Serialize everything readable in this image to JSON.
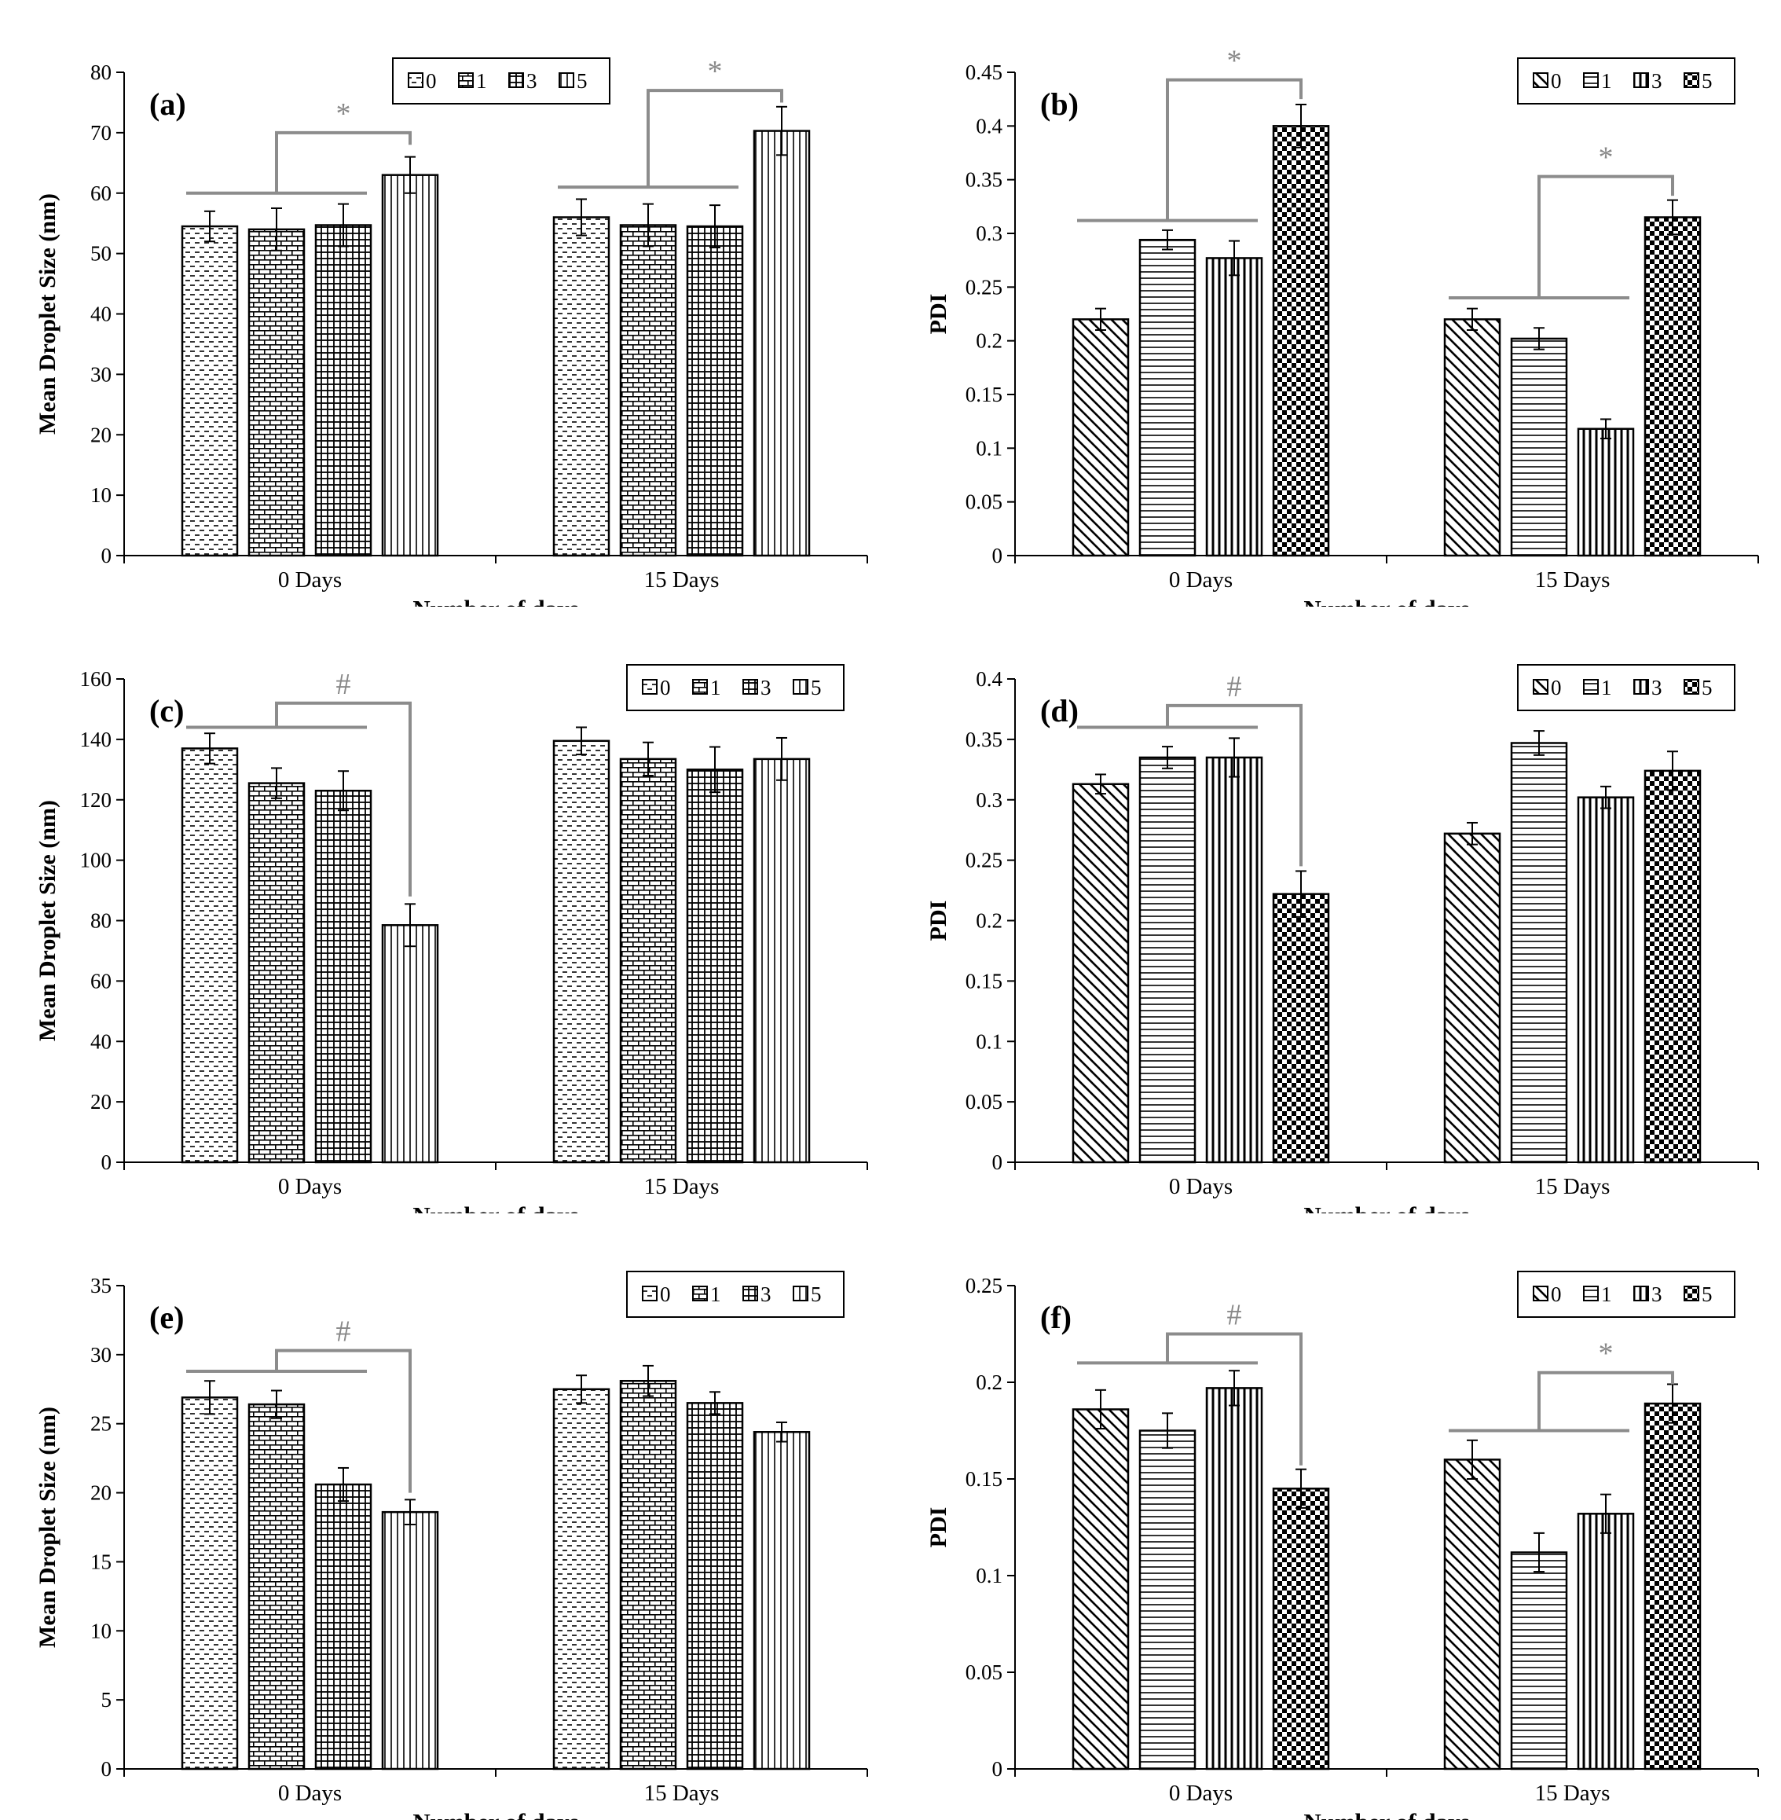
{
  "colors": {
    "bar_stroke": "#000000",
    "bracket": "#8c8c8c",
    "text": "#000000",
    "background": "#ffffff"
  },
  "chart_data": [
    {
      "type": "bar",
      "panel_label": "(a)",
      "pattern_set": "size",
      "xlabel": "Number  of days",
      "ylabel": "Mean Droplet Size (nm)",
      "ylim": [
        0,
        80
      ],
      "yticks": [
        0,
        10,
        20,
        30,
        40,
        50,
        60,
        70,
        80
      ],
      "categories": [
        "0 Days",
        "15 Days"
      ],
      "series": [
        {
          "name": "0",
          "values": [
            54.5,
            56
          ],
          "errors": [
            2.5,
            3
          ]
        },
        {
          "name": "1",
          "values": [
            54,
            54.7
          ],
          "errors": [
            3.5,
            3.5
          ]
        },
        {
          "name": "3",
          "values": [
            54.7,
            54.5
          ],
          "errors": [
            3.5,
            3.5
          ]
        },
        {
          "name": "5",
          "values": [
            63,
            70.3
          ],
          "errors": [
            3,
            4
          ]
        }
      ],
      "legend_position": "top-center",
      "annotations": [
        {
          "symbol": "*",
          "category": 0,
          "from_series": [
            0,
            2
          ],
          "to_series": 3,
          "group_y": 60,
          "top_y": 70,
          "end_y": 68
        },
        {
          "symbol": "*",
          "category": 1,
          "from_series": [
            0,
            2
          ],
          "to_series": 3,
          "group_y": 61,
          "top_y": 77,
          "end_y": 75
        }
      ]
    },
    {
      "type": "bar",
      "panel_label": "(b)",
      "pattern_set": "pdi",
      "xlabel": "Number  of days",
      "ylabel": "PDI",
      "ylim": [
        0,
        0.45
      ],
      "yticks": [
        0,
        0.05,
        0.1,
        0.15,
        0.2,
        0.25,
        0.3,
        0.35,
        0.4,
        0.45
      ],
      "categories": [
        "0 Days",
        "15 Days"
      ],
      "series": [
        {
          "name": "0",
          "values": [
            0.22,
            0.22
          ],
          "errors": [
            0.01,
            0.01
          ]
        },
        {
          "name": "1",
          "values": [
            0.294,
            0.202
          ],
          "errors": [
            0.009,
            0.01
          ]
        },
        {
          "name": "3",
          "values": [
            0.277,
            0.118
          ],
          "errors": [
            0.016,
            0.009
          ]
        },
        {
          "name": "5",
          "values": [
            0.4,
            0.315
          ],
          "errors": [
            0.02,
            0.016
          ]
        }
      ],
      "legend_position": "top-right",
      "annotations": [
        {
          "symbol": "*",
          "category": 0,
          "from_series": [
            0,
            2
          ],
          "to_series": 3,
          "group_y": 0.312,
          "top_y": 0.443,
          "end_y": 0.425
        },
        {
          "symbol": "*",
          "category": 1,
          "from_series": [
            0,
            2
          ],
          "to_series": 3,
          "group_y": 0.24,
          "top_y": 0.353,
          "end_y": 0.335
        }
      ]
    },
    {
      "type": "bar",
      "panel_label": "(c)",
      "pattern_set": "size",
      "xlabel": "Number  of days",
      "ylabel": "Mean Droplet Size (nm)",
      "ylim": [
        0,
        160
      ],
      "yticks": [
        0,
        20,
        40,
        60,
        80,
        100,
        120,
        140,
        160
      ],
      "categories": [
        "0 Days",
        "15 Days"
      ],
      "series": [
        {
          "name": "0",
          "values": [
            137,
            139.5
          ],
          "errors": [
            5,
            4.5
          ]
        },
        {
          "name": "1",
          "values": [
            125.5,
            133.5
          ],
          "errors": [
            5,
            5.5
          ]
        },
        {
          "name": "3",
          "values": [
            123,
            130
          ],
          "errors": [
            6.5,
            7.5
          ]
        },
        {
          "name": "5",
          "values": [
            78.5,
            133.5
          ],
          "errors": [
            7,
            7
          ]
        }
      ],
      "legend_position": "top-right",
      "annotations": [
        {
          "symbol": "#",
          "category": 0,
          "from_series": [
            0,
            2
          ],
          "to_series": 3,
          "group_y": 144,
          "top_y": 152,
          "end_y": 88
        }
      ]
    },
    {
      "type": "bar",
      "panel_label": "(d)",
      "pattern_set": "pdi",
      "xlabel": "Number  of days",
      "ylabel": "PDI",
      "ylim": [
        0,
        0.4
      ],
      "yticks": [
        0,
        0.05,
        0.1,
        0.15,
        0.2,
        0.25,
        0.3,
        0.35,
        0.4
      ],
      "categories": [
        "0 Days",
        "15 Days"
      ],
      "series": [
        {
          "name": "0",
          "values": [
            0.313,
            0.272
          ],
          "errors": [
            0.008,
            0.009
          ]
        },
        {
          "name": "1",
          "values": [
            0.335,
            0.347
          ],
          "errors": [
            0.009,
            0.01
          ]
        },
        {
          "name": "3",
          "values": [
            0.335,
            0.302
          ],
          "errors": [
            0.016,
            0.009
          ]
        },
        {
          "name": "5",
          "values": [
            0.222,
            0.324
          ],
          "errors": [
            0.019,
            0.016
          ]
        }
      ],
      "legend_position": "top-right",
      "annotations": [
        {
          "symbol": "#",
          "category": 0,
          "from_series": [
            0,
            2
          ],
          "to_series": 3,
          "group_y": 0.36,
          "top_y": 0.378,
          "end_y": 0.245
        }
      ]
    },
    {
      "type": "bar",
      "panel_label": "(e)",
      "pattern_set": "size",
      "xlabel": "Number  of days",
      "ylabel": "Mean Droplet Size (nm)",
      "ylim": [
        0,
        35
      ],
      "yticks": [
        0,
        5,
        10,
        15,
        20,
        25,
        30,
        35
      ],
      "categories": [
        "0 Days",
        "15 Days"
      ],
      "series": [
        {
          "name": "0",
          "values": [
            26.9,
            27.5
          ],
          "errors": [
            1.2,
            1
          ]
        },
        {
          "name": "1",
          "values": [
            26.4,
            28.1
          ],
          "errors": [
            1,
            1.1
          ]
        },
        {
          "name": "3",
          "values": [
            20.6,
            26.5
          ],
          "errors": [
            1.2,
            0.8
          ]
        },
        {
          "name": "5",
          "values": [
            18.6,
            24.4
          ],
          "errors": [
            0.9,
            0.7
          ]
        }
      ],
      "legend_position": "top-right",
      "annotations": [
        {
          "symbol": "#",
          "category": 0,
          "from_series": [
            0,
            2
          ],
          "to_series": 3,
          "group_y": 28.8,
          "top_y": 30.3,
          "end_y": 20
        }
      ]
    },
    {
      "type": "bar",
      "panel_label": "(f)",
      "pattern_set": "pdi",
      "xlabel": "Number  of days",
      "ylabel": "PDI",
      "ylim": [
        0,
        0.25
      ],
      "yticks": [
        0,
        0.05,
        0.1,
        0.15,
        0.2,
        0.25
      ],
      "categories": [
        "0 Days",
        "15 Days"
      ],
      "series": [
        {
          "name": "0",
          "values": [
            0.186,
            0.16
          ],
          "errors": [
            0.01,
            0.01
          ]
        },
        {
          "name": "1",
          "values": [
            0.175,
            0.112
          ],
          "errors": [
            0.009,
            0.01
          ]
        },
        {
          "name": "3",
          "values": [
            0.197,
            0.132
          ],
          "errors": [
            0.009,
            0.01
          ]
        },
        {
          "name": "5",
          "values": [
            0.145,
            0.189
          ],
          "errors": [
            0.01,
            0.01
          ]
        }
      ],
      "legend_position": "top-right",
      "annotations": [
        {
          "symbol": "#",
          "category": 0,
          "from_series": [
            0,
            2
          ],
          "to_series": 3,
          "group_y": 0.21,
          "top_y": 0.225,
          "end_y": 0.157
        },
        {
          "symbol": "*",
          "category": 1,
          "from_series": [
            0,
            2
          ],
          "to_series": 3,
          "group_y": 0.175,
          "top_y": 0.205,
          "end_y": 0.199
        }
      ]
    }
  ]
}
